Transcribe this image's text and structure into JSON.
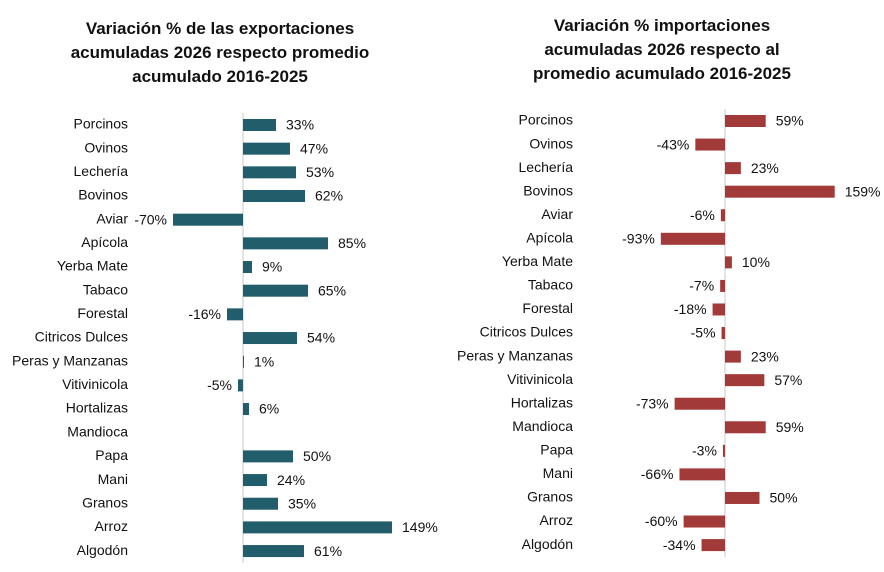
{
  "chart_data": [
    {
      "type": "barh",
      "title": "Variación % de las exportaciones acumuladas 2026 respecto promedio acumulado 2016-2025",
      "categories": [
        "Porcinos",
        "Ovinos",
        "Lechería",
        "Bovinos",
        "Aviar",
        "Apícola",
        "Yerba Mate",
        "Tabaco",
        "Forestal",
        "Citricos Dulces",
        "Peras y Manzanas",
        "Vitivinicola",
        "Hortalizas",
        "Mandioca",
        "Papa",
        "Mani",
        "Granos",
        "Arroz",
        "Algodón"
      ],
      "values": [
        33,
        47,
        53,
        62,
        -70,
        85,
        9,
        65,
        -16,
        54,
        1,
        -5,
        6,
        null,
        50,
        24,
        35,
        149,
        61
      ],
      "value_labels": [
        "33%",
        "47%",
        "53%",
        "62%",
        "-70%",
        "85%",
        "9%",
        "65%",
        "-16%",
        "54%",
        "1%",
        "-5%",
        "6%",
        null,
        "50%",
        "24%",
        "35%",
        "149%",
        "61%"
      ],
      "color": "#215d6b"
    },
    {
      "type": "barh",
      "title": "Variación % importaciones acumuladas 2026 respecto al promedio acumulado 2016-2025",
      "categories": [
        "Porcinos",
        "Ovinos",
        "Lechería",
        "Bovinos",
        "Aviar",
        "Apícola",
        "Yerba Mate",
        "Tabaco",
        "Forestal",
        "Citricos Dulces",
        "Peras y Manzanas",
        "Vitivinicola",
        "Hortalizas",
        "Mandioca",
        "Papa",
        "Mani",
        "Granos",
        "Arroz",
        "Algodón"
      ],
      "values": [
        59,
        -43,
        23,
        159,
        -6,
        -93,
        10,
        -7,
        -18,
        -5,
        23,
        57,
        -73,
        59,
        -3,
        -66,
        50,
        -60,
        -34
      ],
      "value_labels": [
        "59%",
        "-43%",
        "23%",
        "159%",
        "-6%",
        "-93%",
        "10%",
        "-7%",
        "-18%",
        "-5%",
        "23%",
        "57%",
        "-73%",
        "59%",
        "-3%",
        "-66%",
        "50%",
        "-60%",
        "-34%"
      ],
      "color": "#a33a3a"
    }
  ]
}
